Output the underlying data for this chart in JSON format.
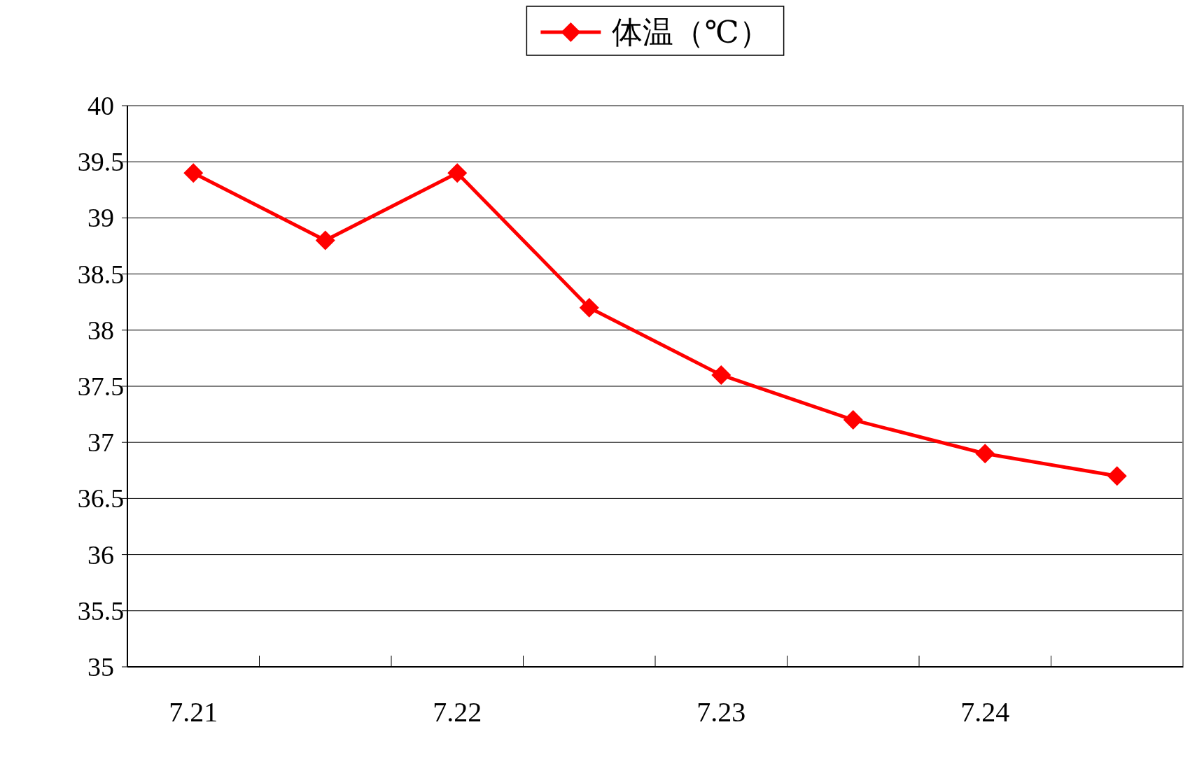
{
  "chart_data": {
    "type": "line",
    "categories": [
      "7.21",
      null,
      "7.22",
      null,
      "7.23",
      null,
      "7.24",
      null
    ],
    "series": [
      {
        "name": "体温（℃）",
        "color": "#ff0000",
        "values": [
          39.4,
          38.8,
          39.4,
          38.2,
          37.6,
          37.2,
          36.9,
          36.7
        ]
      }
    ],
    "ylim": [
      35,
      40
    ],
    "yticks": [
      35,
      35.5,
      36,
      36.5,
      37,
      37.5,
      38,
      38.5,
      39,
      39.5,
      40
    ],
    "grid": "y",
    "legend": "top",
    "marker": "diamond",
    "line_style": "solid"
  }
}
